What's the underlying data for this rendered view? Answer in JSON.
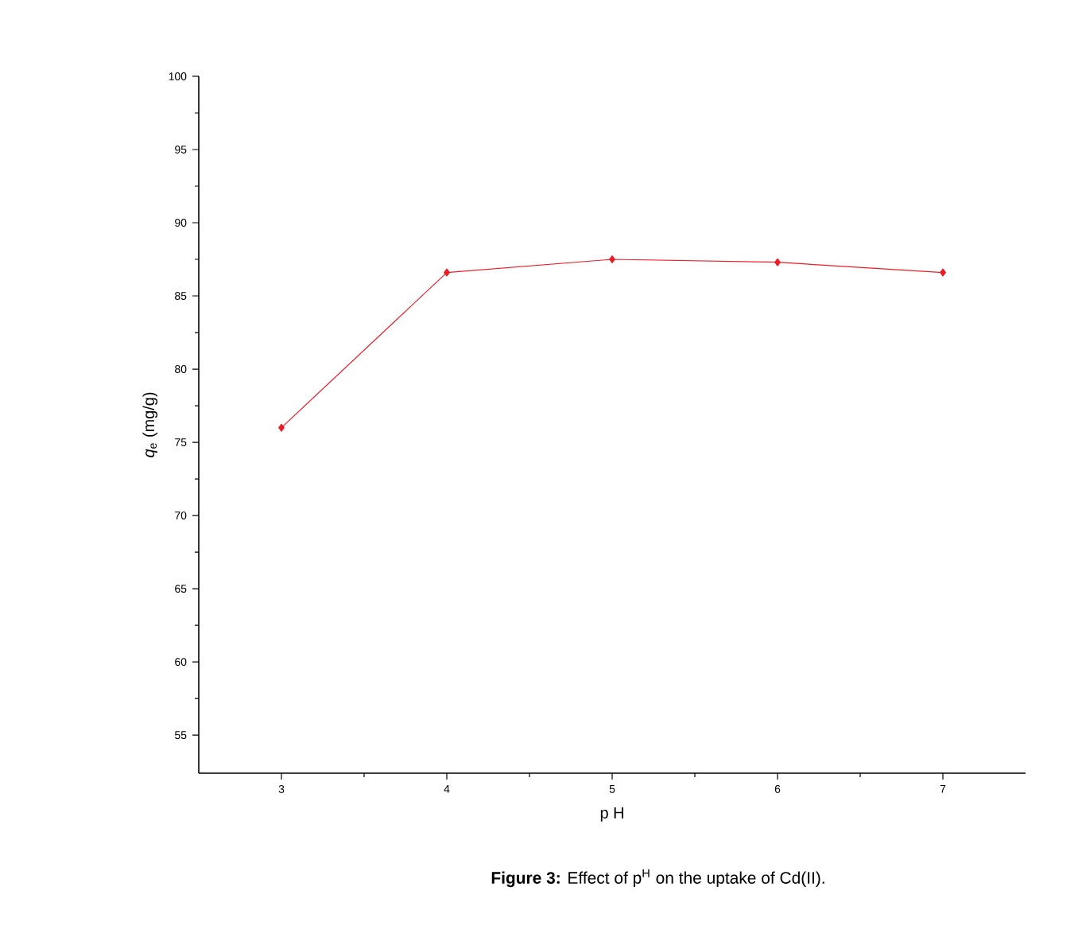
{
  "chart_data": {
    "type": "line",
    "xlabel": "p H",
    "ylabel": "*q*$_{e}$ (mg/g)",
    "annotations": [
      "**Figure 3:** Effect of p$^{H}$ on the uptake of Cd(II)."
    ],
    "x": [
      3,
      4,
      5,
      6,
      7
    ],
    "series": [
      {
        "color": "#ee1c25",
        "values": [
          76.0,
          86.6,
          87.5,
          87.3,
          86.6
        ]
      }
    ],
    "xlim": [
      2.5,
      7.5
    ],
    "ylim": [
      52.4,
      100
    ],
    "xticks": [
      3,
      4,
      5,
      6,
      7
    ],
    "yticks": [
      55,
      60,
      65,
      70,
      75,
      80,
      85,
      90,
      95,
      100
    ],
    "marker": "diamond",
    "line_style": "solid"
  }
}
